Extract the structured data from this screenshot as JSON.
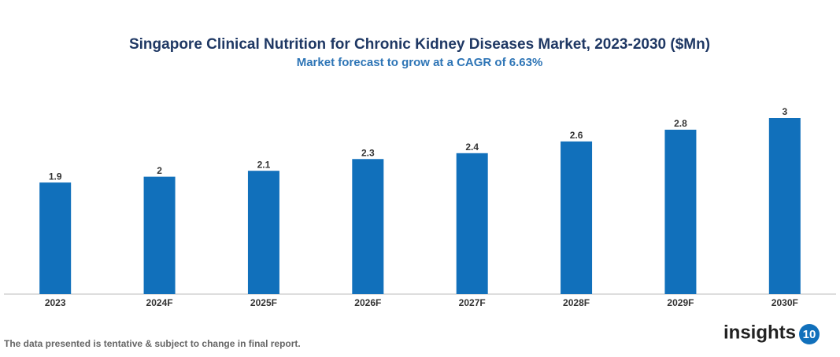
{
  "chart_data": {
    "type": "bar",
    "title": "Singapore Clinical Nutrition for Chronic Kidney Diseases Market, 2023-2030 ($Mn)",
    "subtitle": "Market forecast to grow at a CAGR of 6.63%",
    "categories": [
      "2023",
      "2024F",
      "2025F",
      "2026F",
      "2027F",
      "2028F",
      "2029F",
      "2030F"
    ],
    "values": [
      1.9,
      2,
      2.1,
      2.3,
      2.4,
      2.6,
      2.8,
      3
    ],
    "color": "#1170bb",
    "footnote": "The data presented is tentative & subject to change in final report."
  },
  "logo": {
    "text": "insights",
    "badge": "10"
  }
}
